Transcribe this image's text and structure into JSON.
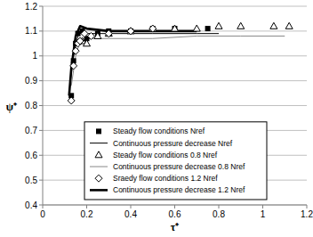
{
  "chart_data": {
    "type": "scatter",
    "x_label": "τ⁺",
    "y_label": "ψ⁺",
    "xlim": [
      0,
      1.2
    ],
    "xticks": [
      0,
      0.2,
      0.4,
      0.6,
      0.8,
      1,
      1.2
    ],
    "ylim": [
      0.4,
      1.2
    ],
    "yticks": [
      0.4,
      0.5,
      0.6,
      0.7,
      0.8,
      0.9,
      1,
      1.1,
      1.2
    ],
    "grid": true,
    "legend": "bottom",
    "series": [
      {
        "name": "Steady flow conditions Nref",
        "type": "scatter",
        "marker": "square",
        "color": "#000000",
        "x": [
          0.13,
          0.14,
          0.15,
          0.16,
          0.18,
          0.2,
          0.25,
          0.3,
          0.4,
          0.5,
          0.6,
          0.75
        ],
        "values": [
          0.84,
          0.98,
          1.05,
          1.09,
          1.1,
          1.07,
          1.09,
          1.1,
          1.1,
          1.11,
          1.11,
          1.11
        ]
      },
      {
        "name": "Continuous pressure decrease Nref",
        "type": "line",
        "line_style": "solid",
        "color": "#000000",
        "x": [
          0.12,
          0.14,
          0.16,
          0.18,
          0.2,
          0.3,
          0.5,
          0.7,
          0.8
        ],
        "values": [
          0.85,
          1.0,
          1.08,
          1.1,
          1.09,
          1.09,
          1.09,
          1.09,
          1.09
        ]
      },
      {
        "name": "Steady flow conditions 0.8 Nref",
        "type": "scatter",
        "marker": "triangle",
        "color": "#000000",
        "x": [
          0.18,
          0.2,
          0.25,
          0.3,
          0.4,
          0.5,
          0.6,
          0.7,
          0.8,
          0.9,
          1.05,
          1.12
        ],
        "values": [
          1.06,
          1.05,
          1.08,
          1.09,
          1.1,
          1.11,
          1.11,
          1.11,
          1.12,
          1.12,
          1.12,
          1.12
        ]
      },
      {
        "name": "Continuous pressure decrease 0.8 Nref",
        "type": "line",
        "line_style": "solid",
        "color": "#888888",
        "x": [
          0.13,
          0.15,
          0.17,
          0.2,
          0.3,
          0.5,
          0.7,
          0.9,
          1.1
        ],
        "values": [
          0.88,
          1.0,
          1.06,
          1.07,
          1.07,
          1.07,
          1.08,
          1.08,
          1.08
        ]
      },
      {
        "name": "Sraedy flow conditions 1.2 Nref",
        "type": "scatter",
        "marker": "diamond",
        "color": "#000000",
        "x": [
          0.13,
          0.14,
          0.15,
          0.16,
          0.17,
          0.19,
          0.22,
          0.3,
          0.4,
          0.5
        ],
        "values": [
          0.82,
          0.96,
          1.02,
          1.05,
          1.06,
          1.09,
          1.08,
          1.09,
          1.1,
          1.11
        ]
      },
      {
        "name": "Continuous pressure decrease 1.2 Nref",
        "type": "line",
        "line_style": "thick",
        "color": "#000000",
        "x": [
          0.12,
          0.13,
          0.15,
          0.17,
          0.2,
          0.3,
          0.5,
          0.7
        ],
        "values": [
          0.84,
          0.95,
          1.08,
          1.12,
          1.11,
          1.1,
          1.1,
          1.1
        ]
      }
    ]
  }
}
